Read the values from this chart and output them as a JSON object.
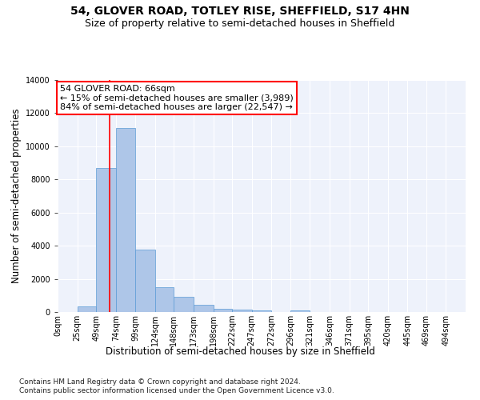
{
  "title1": "54, GLOVER ROAD, TOTLEY RISE, SHEFFIELD, S17 4HN",
  "title2": "Size of property relative to semi-detached houses in Sheffield",
  "xlabel": "Distribution of semi-detached houses by size in Sheffield",
  "ylabel": "Number of semi-detached properties",
  "footnote1": "Contains HM Land Registry data © Crown copyright and database right 2024.",
  "footnote2": "Contains public sector information licensed under the Open Government Licence v3.0.",
  "bar_labels": [
    "0sqm",
    "25sqm",
    "49sqm",
    "74sqm",
    "99sqm",
    "124sqm",
    "148sqm",
    "173sqm",
    "198sqm",
    "222sqm",
    "247sqm",
    "272sqm",
    "296sqm",
    "321sqm",
    "346sqm",
    "371sqm",
    "395sqm",
    "420sqm",
    "445sqm",
    "469sqm",
    "494sqm"
  ],
  "bar_values": [
    0,
    320,
    8700,
    11100,
    3750,
    1480,
    900,
    420,
    215,
    130,
    110,
    0,
    115,
    0,
    0,
    0,
    0,
    0,
    0,
    0,
    0
  ],
  "bar_color": "#aec6e8",
  "bar_edge_color": "#5b9bd5",
  "annotation_text": "54 GLOVER ROAD: 66sqm\n← 15% of semi-detached houses are smaller (3,989)\n84% of semi-detached houses are larger (22,547) →",
  "annotation_box_color": "white",
  "annotation_box_edge_color": "red",
  "property_line_x": 66,
  "property_line_color": "red",
  "ylim": [
    0,
    14000
  ],
  "xlim_min": 0,
  "xlim_max": 519,
  "background_color": "#eef2fb",
  "grid_color": "white",
  "title_fontsize": 10,
  "subtitle_fontsize": 9,
  "axis_label_fontsize": 8.5,
  "tick_fontsize": 7,
  "annotation_fontsize": 8,
  "footnote_fontsize": 6.5
}
